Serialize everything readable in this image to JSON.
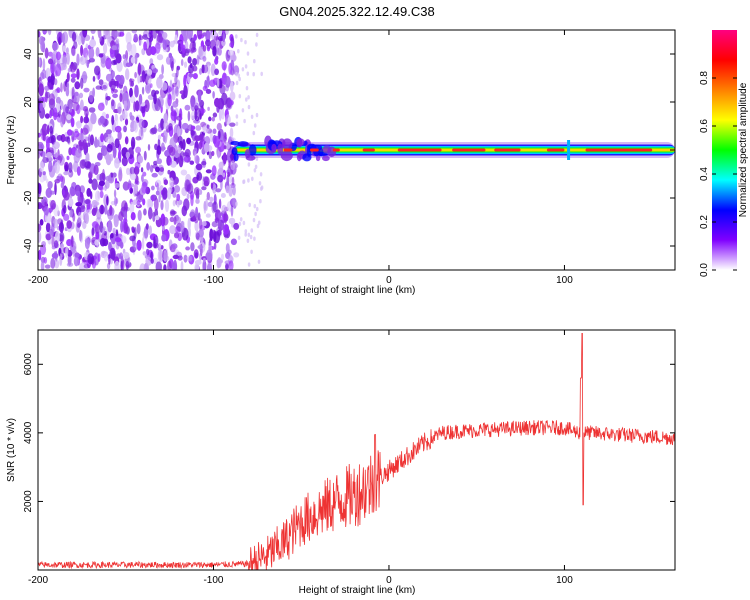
{
  "title": "GN04.2025.322.12.49.C38",
  "chart_data": [
    {
      "type": "heatmap",
      "xlabel": "Height of straight line (km)",
      "ylabel": "Frequency (Hz)",
      "xlim": [
        -200,
        163
      ],
      "ylim": [
        -50,
        50
      ],
      "xticks": [
        -200,
        -100,
        0,
        100
      ],
      "yticks": [
        -40,
        -20,
        0,
        20,
        40
      ],
      "noise_region_x": [
        -200,
        -87
      ],
      "signal_band_x": [
        -88,
        163
      ],
      "signal_center_hz": 0,
      "colorbar": {
        "label": "Normalized spectral amplitude",
        "range": [
          0,
          1
        ],
        "ticks": [
          0.0,
          0.2,
          0.4,
          0.6,
          0.8
        ],
        "tick_labels": [
          "0.0",
          "0.2",
          "0.4",
          "0.6",
          "0.8"
        ],
        "colormap": [
          "#ffffff",
          "#8000ff",
          "#0000ff",
          "#00ffff",
          "#00ff00",
          "#ffff00",
          "#ff8000",
          "#ff0000",
          "#ff0080"
        ]
      }
    },
    {
      "type": "line",
      "xlabel": "Height of straight line (km)",
      "ylabel": "SNR (10 * v/v)",
      "xlim": [
        -200,
        163
      ],
      "ylim": [
        0,
        7000
      ],
      "xticks": [
        -200,
        -100,
        0,
        100
      ],
      "yticks": [
        2000,
        4000,
        6000
      ],
      "color": "#ee3333",
      "series": [
        {
          "name": "SNR",
          "x": [
            -200,
            -150,
            -100,
            -80,
            -70,
            -60,
            -50,
            -40,
            -30,
            -20,
            -10,
            0,
            10,
            20,
            30,
            40,
            60,
            80,
            100,
            105,
            110,
            112,
            115,
            130,
            163
          ],
          "y": [
            150,
            150,
            150,
            180,
            400,
            800,
            1400,
            1700,
            2000,
            2200,
            2500,
            2900,
            3300,
            3700,
            4000,
            4050,
            4100,
            4150,
            4150,
            4050,
            4000,
            4000,
            4000,
            3950,
            3850
          ]
        }
      ],
      "annotations": [
        {
          "x": -8,
          "y": 4000,
          "text": ""
        },
        {
          "x": 110,
          "y": 6900,
          "text": ""
        },
        {
          "x": 110,
          "y": 1900,
          "text": ""
        }
      ]
    }
  ]
}
